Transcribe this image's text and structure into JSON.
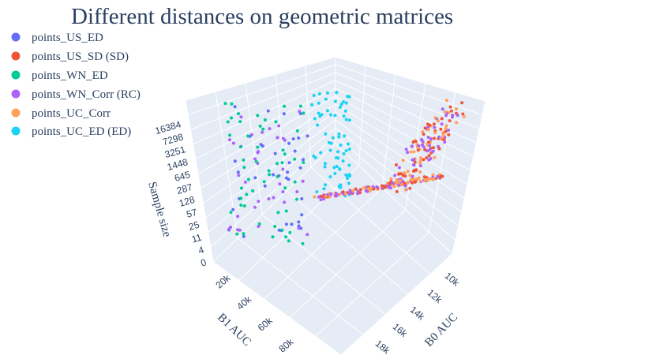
{
  "chart_data": {
    "type": "scatter",
    "title": "Different distances on geometric matrices",
    "axes": {
      "x": {
        "title": "B0 AUC",
        "ticks": [
          "10k",
          "12k",
          "14k",
          "16k",
          "18k"
        ]
      },
      "y": {
        "title": "B1 AUC",
        "ticks": [
          "20k",
          "40k",
          "60k",
          "80k"
        ]
      },
      "z": {
        "title": "Sample size",
        "scale": "log",
        "ticks": [
          "0",
          "4",
          "11",
          "25",
          "57",
          "128",
          "287",
          "645",
          "1448",
          "3251",
          "7298",
          "16384"
        ]
      }
    },
    "legend_position": "top-left",
    "grid": true,
    "series": [
      {
        "name": "points_US_ED",
        "color": "#636efa"
      },
      {
        "name": "points_US_SD (SD)",
        "color": "#ef553b"
      },
      {
        "name": "points_WN_ED",
        "color": "#00cc96"
      },
      {
        "name": "points_WN_Corr (RC)",
        "color": "#ab63fa"
      },
      {
        "name": "points_UC_Corr",
        "color": "#ffa15a"
      },
      {
        "name": "points_UC_ED (ED)",
        "color": "#19d3f3"
      }
    ]
  }
}
